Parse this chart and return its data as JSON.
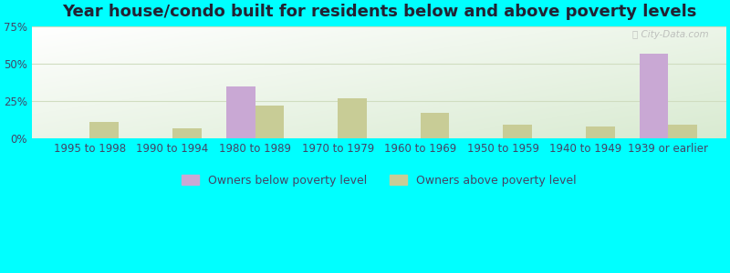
{
  "title": "Year house/condo built for residents below and above poverty levels",
  "categories": [
    "1995 to 1998",
    "1990 to 1994",
    "1980 to 1989",
    "1970 to 1979",
    "1960 to 1969",
    "1950 to 1959",
    "1940 to 1949",
    "1939 or earlier"
  ],
  "below_poverty": [
    0,
    0,
    35,
    0,
    0,
    0,
    0,
    57
  ],
  "above_poverty": [
    11,
    7,
    22,
    27,
    17,
    9,
    8,
    9
  ],
  "below_color": "#c9a8d4",
  "above_color": "#c8cc96",
  "ylim": [
    0,
    75
  ],
  "yticks": [
    0,
    25,
    50,
    75
  ],
  "ytick_labels": [
    "0%",
    "25%",
    "50%",
    "75%"
  ],
  "background_outer": "#00ffff",
  "grid_color": "#d0ddc0",
  "bar_width": 0.35,
  "title_fontsize": 13,
  "tick_fontsize": 8.5,
  "legend_fontsize": 9,
  "tick_color": "#444466",
  "title_color": "#222233"
}
